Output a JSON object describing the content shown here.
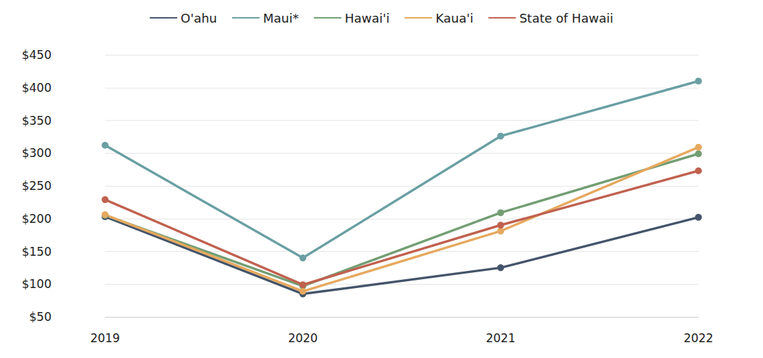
{
  "chart_data": {
    "type": "line",
    "categories": [
      "2019",
      "2020",
      "2021",
      "2022"
    ],
    "series": [
      {
        "name": "O'ahu",
        "color": "#44546a",
        "values": [
          203,
          85,
          125,
          202
        ]
      },
      {
        "name": "Maui*",
        "color": "#6a9fa3",
        "values": [
          312,
          140,
          326,
          410
        ]
      },
      {
        "name": "Hawai'i",
        "color": "#739e73",
        "values": [
          205,
          97,
          209,
          299
        ]
      },
      {
        "name": "Kaua'i",
        "color": "#e6a95f",
        "values": [
          206,
          89,
          181,
          309
        ]
      },
      {
        "name": "State of Hawaii",
        "color": "#c0614f",
        "values": [
          229,
          99,
          190,
          273
        ]
      }
    ],
    "ylim": [
      50,
      450
    ],
    "yticks": [
      {
        "value": 50,
        "label": "$50"
      },
      {
        "value": 100,
        "label": "$100"
      },
      {
        "value": 150,
        "label": "$150"
      },
      {
        "value": 200,
        "label": "$200"
      },
      {
        "value": 250,
        "label": "$250"
      },
      {
        "value": 300,
        "label": "$300"
      },
      {
        "value": 350,
        "label": "$350"
      },
      {
        "value": 400,
        "label": "$400"
      },
      {
        "value": 450,
        "label": "$450"
      }
    ],
    "grid": true,
    "legend": "top",
    "marker": "circle"
  }
}
